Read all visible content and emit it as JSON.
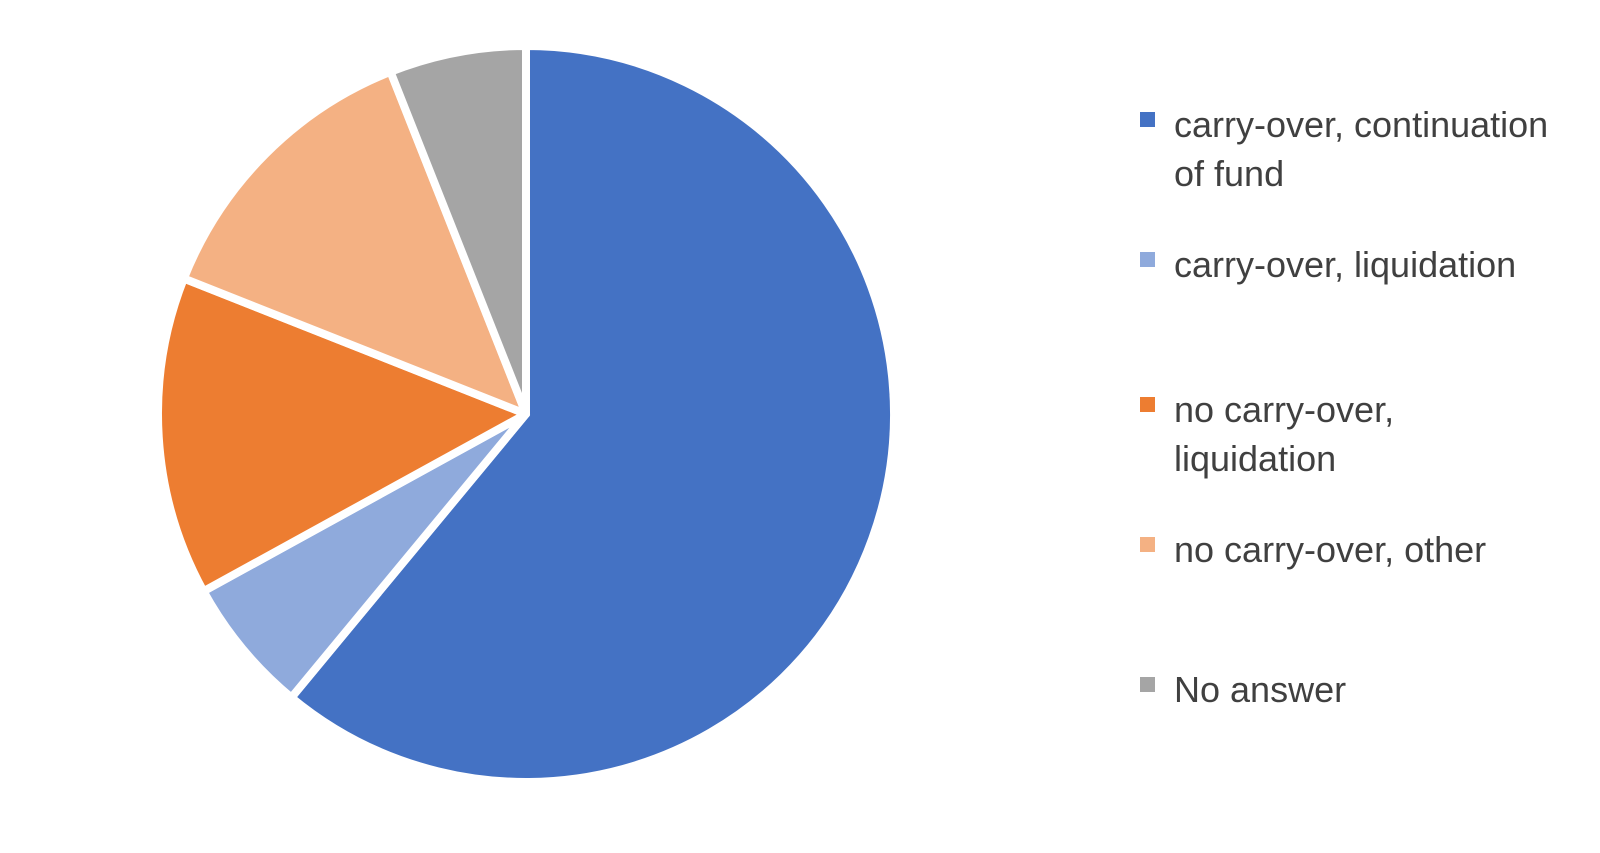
{
  "chart_data": {
    "type": "pie",
    "title": "",
    "start_angle_deg": 0,
    "direction": "clockwise",
    "slices": [
      {
        "label": "carry-over, continuation of fund",
        "value": 61,
        "color": "#4472C4"
      },
      {
        "label": "carry-over, liquidation",
        "value": 6,
        "color": "#8FAADC"
      },
      {
        "label": "no carry-over, liquidation",
        "value": 14,
        "color": "#ED7D31"
      },
      {
        "label": "no carry-over, other",
        "value": 13,
        "color": "#F4B183"
      },
      {
        "label": "No answer",
        "value": 6,
        "color": "#A5A5A5"
      }
    ],
    "legend_position": "right"
  }
}
